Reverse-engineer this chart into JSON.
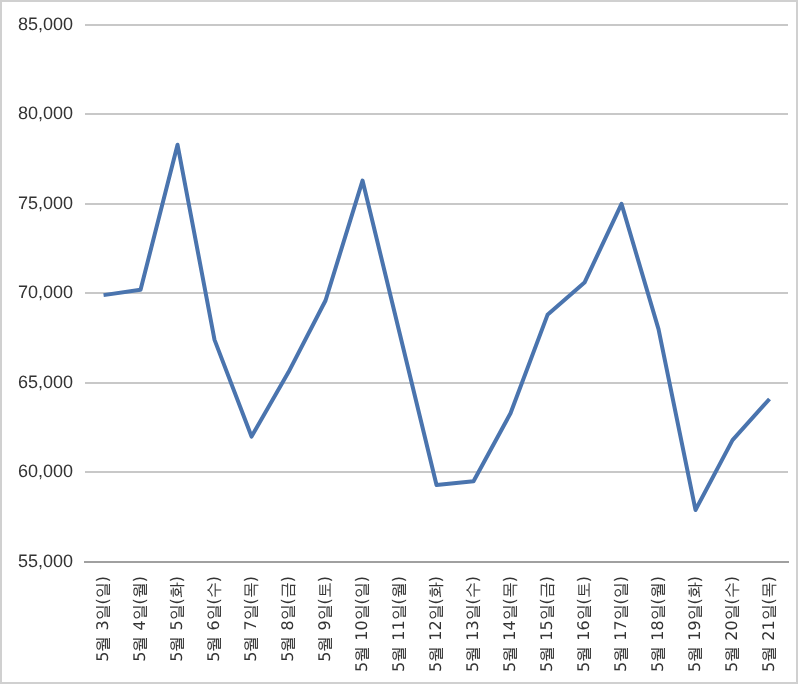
{
  "chart_data": {
    "type": "line",
    "categories": [
      "5월 3일(일)",
      "5월 4일(월)",
      "5월 5일(화)",
      "5월 6일(수)",
      "5월 7일(목)",
      "5월 8일(금)",
      "5월 9일(토)",
      "5월 10일(일)",
      "5월 11일(월)",
      "5월 12일(화)",
      "5월 13일(수)",
      "5월 14일(목)",
      "5월 15일(금)",
      "5월 16일(토)",
      "5월 17일(일)",
      "5월 18일(월)",
      "5월 19일(화)",
      "5월 20일(수)",
      "5월 21일(목)"
    ],
    "series": [
      {
        "color": "#4a74ae",
        "values": [
          69900,
          70200,
          78300,
          67400,
          62000,
          65600,
          69600,
          76300,
          67800,
          59300,
          59500,
          63300,
          68800,
          70600,
          75000,
          68000,
          57900,
          61800,
          64100
        ]
      }
    ],
    "ylim": [
      55000,
      85000
    ],
    "yticks": [
      {
        "value": 55000,
        "label": "55,000"
      },
      {
        "value": 60000,
        "label": "60,000"
      },
      {
        "value": 65000,
        "label": "65,000"
      },
      {
        "value": 70000,
        "label": "70,000"
      },
      {
        "value": 75000,
        "label": "75,000"
      },
      {
        "value": 80000,
        "label": "80,000"
      },
      {
        "value": 85000,
        "label": "85,000"
      }
    ],
    "grid": "y",
    "legend": false,
    "marker": "none",
    "line_style": "solid"
  }
}
